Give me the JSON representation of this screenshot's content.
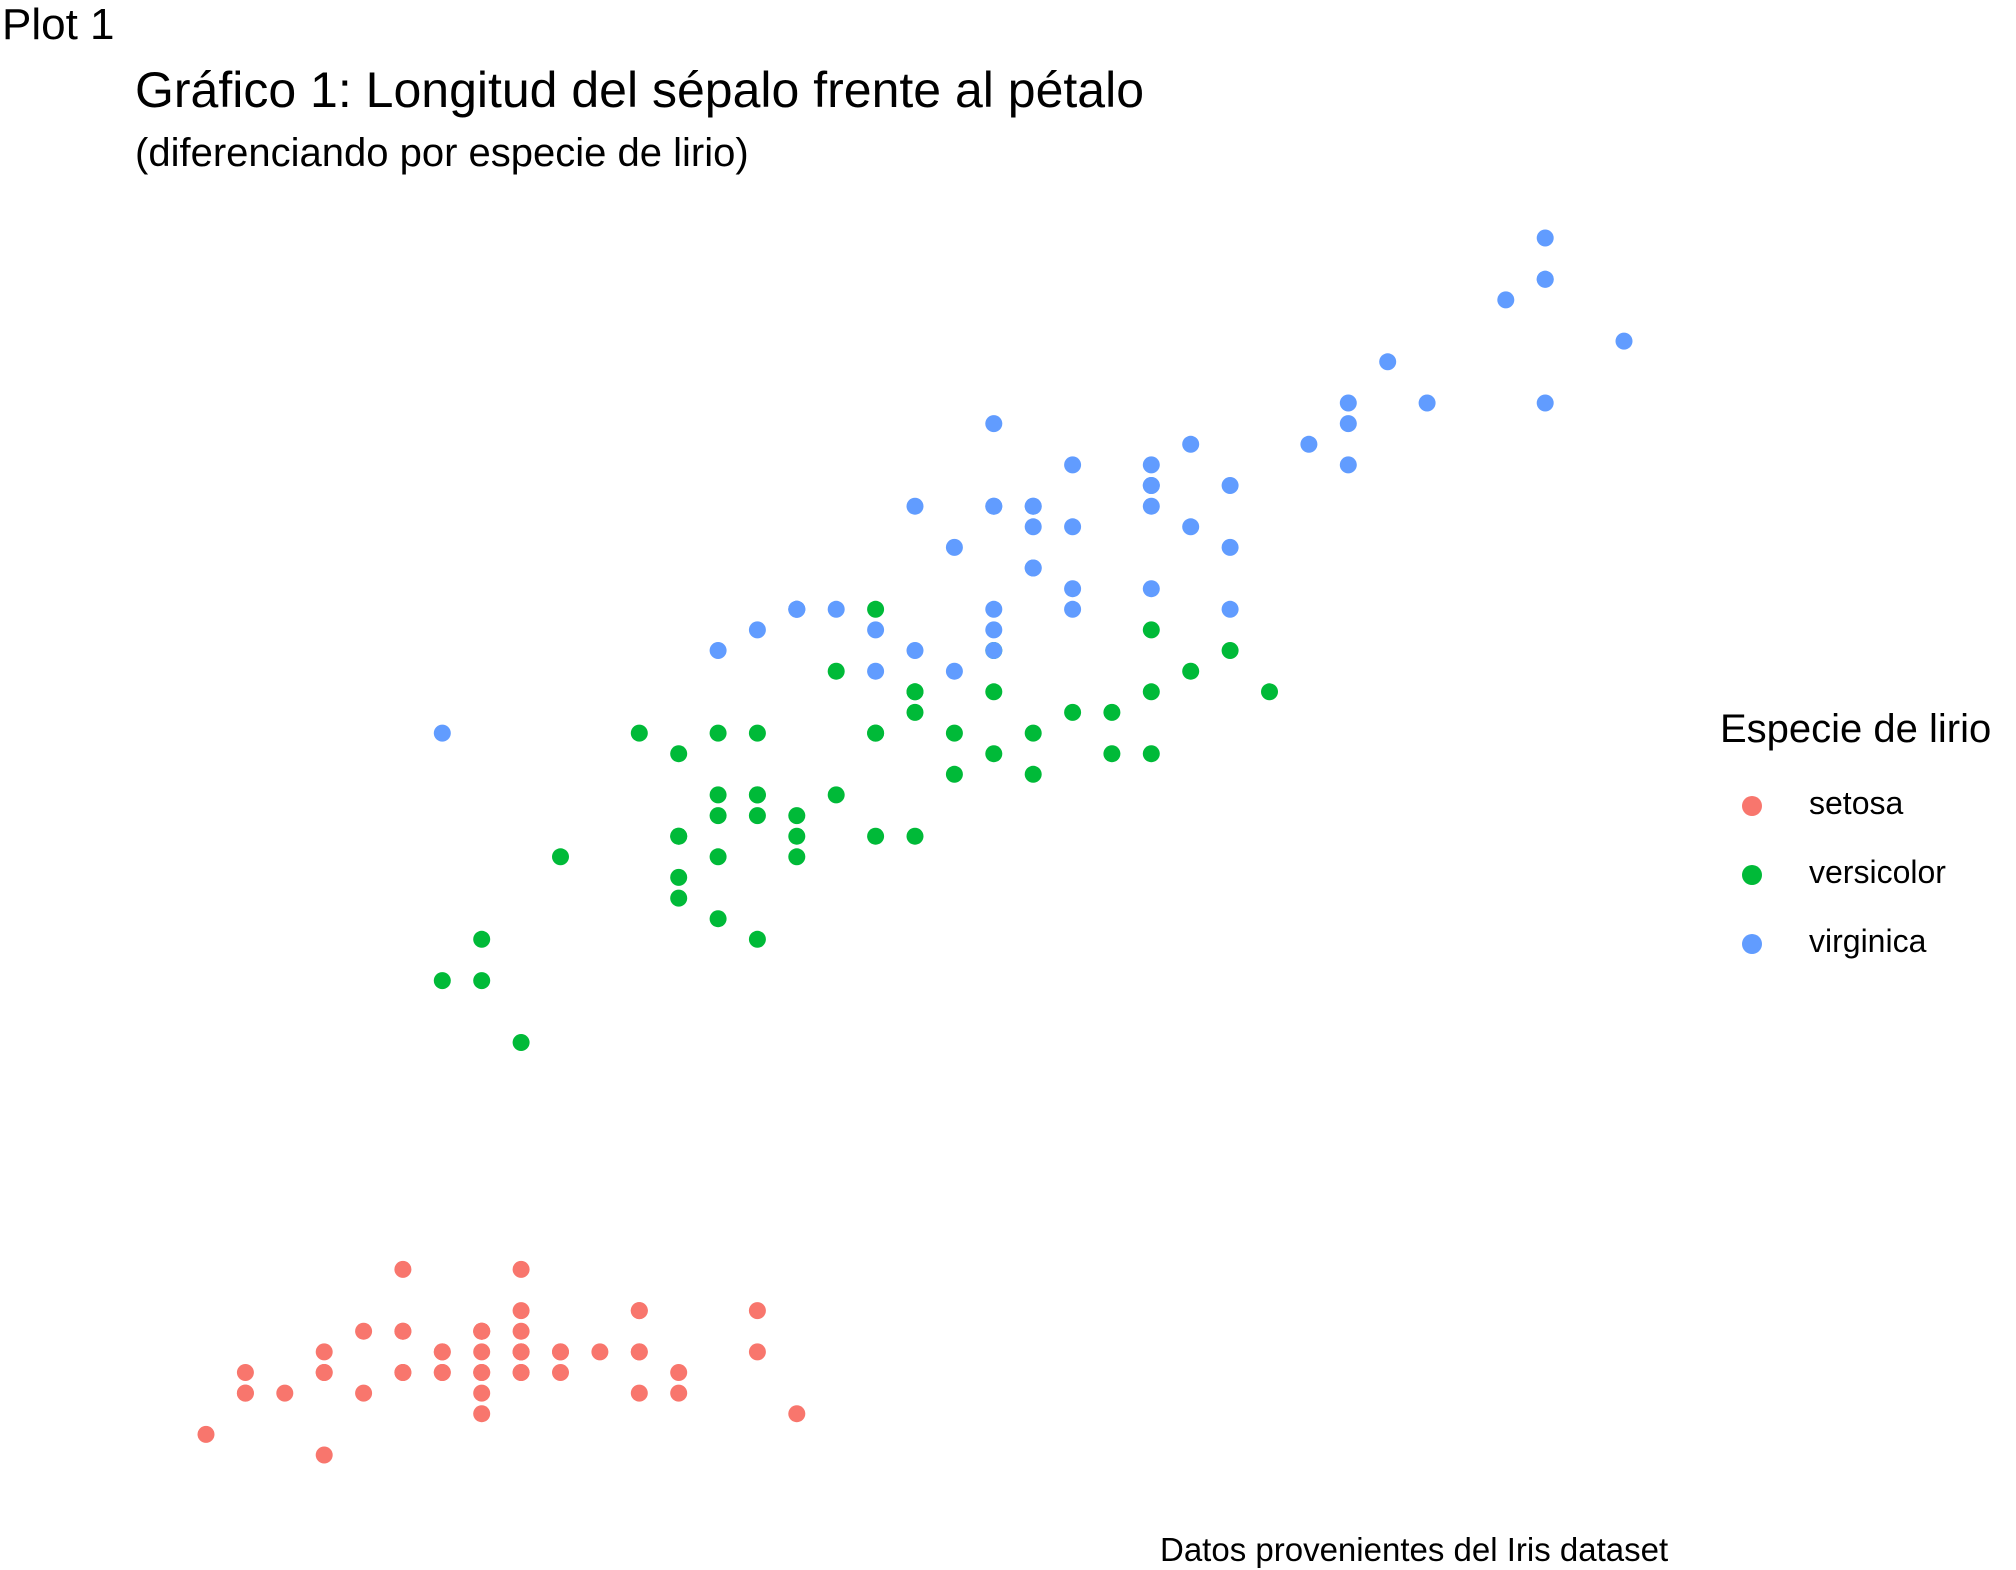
{
  "tag": "Plot 1",
  "chart_data": {
    "type": "scatter",
    "title": "Gráfico 1: Longitud del sépalo frente al pétalo",
    "subtitle": "(diferenciando por especie de lirio)",
    "caption": "Datos provenientes del Iris dataset",
    "xlabel": "",
    "ylabel": "",
    "xlim": [
      4.3,
      7.9
    ],
    "ylim": [
      1.0,
      6.9
    ],
    "grid": false,
    "legend": {
      "title": "Especie de lirio",
      "position": "right"
    },
    "series": [
      {
        "name": "setosa",
        "color": "#F8766D",
        "points": [
          [
            5.1,
            1.4
          ],
          [
            4.9,
            1.4
          ],
          [
            4.7,
            1.3
          ],
          [
            4.6,
            1.5
          ],
          [
            5.0,
            1.4
          ],
          [
            5.4,
            1.7
          ],
          [
            4.6,
            1.4
          ],
          [
            5.0,
            1.5
          ],
          [
            4.4,
            1.4
          ],
          [
            4.9,
            1.5
          ],
          [
            5.4,
            1.5
          ],
          [
            4.8,
            1.6
          ],
          [
            4.8,
            1.4
          ],
          [
            4.3,
            1.1
          ],
          [
            5.8,
            1.2
          ],
          [
            5.7,
            1.5
          ],
          [
            5.4,
            1.3
          ],
          [
            5.1,
            1.4
          ],
          [
            5.7,
            1.7
          ],
          [
            5.1,
            1.5
          ],
          [
            5.4,
            1.7
          ],
          [
            5.1,
            1.5
          ],
          [
            4.6,
            1.0
          ],
          [
            5.1,
            1.7
          ],
          [
            4.8,
            1.9
          ],
          [
            5.0,
            1.6
          ],
          [
            5.0,
            1.6
          ],
          [
            5.2,
            1.5
          ],
          [
            5.2,
            1.4
          ],
          [
            4.7,
            1.6
          ],
          [
            4.8,
            1.6
          ],
          [
            5.4,
            1.5
          ],
          [
            5.2,
            1.5
          ],
          [
            5.5,
            1.4
          ],
          [
            4.9,
            1.5
          ],
          [
            5.0,
            1.2
          ],
          [
            5.5,
            1.3
          ],
          [
            4.9,
            1.4
          ],
          [
            4.4,
            1.3
          ],
          [
            5.1,
            1.5
          ],
          [
            5.0,
            1.3
          ],
          [
            4.5,
            1.3
          ],
          [
            4.4,
            1.3
          ],
          [
            5.0,
            1.6
          ],
          [
            5.1,
            1.9
          ],
          [
            4.8,
            1.4
          ],
          [
            5.1,
            1.6
          ],
          [
            4.6,
            1.4
          ],
          [
            5.3,
            1.5
          ],
          [
            5.0,
            1.4
          ]
        ]
      },
      {
        "name": "versicolor",
        "color": "#00BA38",
        "points": [
          [
            7.0,
            4.7
          ],
          [
            6.4,
            4.5
          ],
          [
            6.9,
            4.9
          ],
          [
            5.5,
            4.0
          ],
          [
            6.5,
            4.6
          ],
          [
            5.7,
            4.5
          ],
          [
            6.3,
            4.7
          ],
          [
            4.9,
            3.3
          ],
          [
            6.6,
            4.6
          ],
          [
            5.2,
            3.9
          ],
          [
            5.0,
            3.5
          ],
          [
            5.9,
            4.2
          ],
          [
            6.0,
            4.0
          ],
          [
            6.1,
            4.7
          ],
          [
            5.6,
            3.6
          ],
          [
            6.7,
            4.4
          ],
          [
            5.6,
            4.5
          ],
          [
            5.8,
            4.1
          ],
          [
            6.2,
            4.5
          ],
          [
            5.6,
            3.9
          ],
          [
            5.9,
            4.8
          ],
          [
            6.1,
            4.0
          ],
          [
            6.3,
            4.9
          ],
          [
            6.1,
            4.7
          ],
          [
            6.4,
            4.3
          ],
          [
            6.6,
            4.4
          ],
          [
            6.8,
            4.8
          ],
          [
            6.7,
            5.0
          ],
          [
            6.0,
            4.5
          ],
          [
            5.7,
            3.5
          ],
          [
            5.5,
            3.8
          ],
          [
            5.5,
            3.7
          ],
          [
            5.8,
            3.9
          ],
          [
            6.0,
            5.1
          ],
          [
            5.4,
            4.5
          ],
          [
            6.0,
            4.5
          ],
          [
            6.7,
            4.7
          ],
          [
            6.3,
            4.4
          ],
          [
            5.6,
            4.1
          ],
          [
            5.5,
            4.0
          ],
          [
            5.5,
            4.4
          ],
          [
            6.1,
            4.6
          ],
          [
            5.8,
            4.0
          ],
          [
            5.0,
            3.3
          ],
          [
            5.6,
            4.2
          ],
          [
            5.7,
            4.2
          ],
          [
            5.7,
            4.2
          ],
          [
            6.2,
            4.3
          ],
          [
            5.1,
            3.0
          ],
          [
            5.7,
            4.1
          ]
        ]
      },
      {
        "name": "virginica",
        "color": "#619CFF",
        "points": [
          [
            6.3,
            6.0
          ],
          [
            5.8,
            5.1
          ],
          [
            7.1,
            5.9
          ],
          [
            6.3,
            5.6
          ],
          [
            6.5,
            5.8
          ],
          [
            7.6,
            6.6
          ],
          [
            4.9,
            4.5
          ],
          [
            7.3,
            6.3
          ],
          [
            6.7,
            5.8
          ],
          [
            7.2,
            6.1
          ],
          [
            6.5,
            5.1
          ],
          [
            6.4,
            5.3
          ],
          [
            6.8,
            5.5
          ],
          [
            5.7,
            5.0
          ],
          [
            5.8,
            5.1
          ],
          [
            6.4,
            5.3
          ],
          [
            6.5,
            5.5
          ],
          [
            7.7,
            6.7
          ],
          [
            7.7,
            6.9
          ],
          [
            6.0,
            5.0
          ],
          [
            6.9,
            5.7
          ],
          [
            5.6,
            4.9
          ],
          [
            7.7,
            6.7
          ],
          [
            6.3,
            4.9
          ],
          [
            6.7,
            5.7
          ],
          [
            7.2,
            6.0
          ],
          [
            6.2,
            4.8
          ],
          [
            6.1,
            4.9
          ],
          [
            6.4,
            5.6
          ],
          [
            7.2,
            5.8
          ],
          [
            7.4,
            6.1
          ],
          [
            7.9,
            6.4
          ],
          [
            6.4,
            5.6
          ],
          [
            6.3,
            5.1
          ],
          [
            6.1,
            5.6
          ],
          [
            7.7,
            6.1
          ],
          [
            6.3,
            5.6
          ],
          [
            6.4,
            5.5
          ],
          [
            6.0,
            4.8
          ],
          [
            6.9,
            5.4
          ],
          [
            6.7,
            5.6
          ],
          [
            6.9,
            5.1
          ],
          [
            5.8,
            5.1
          ],
          [
            6.8,
            5.9
          ],
          [
            6.7,
            5.7
          ],
          [
            6.7,
            5.2
          ],
          [
            6.3,
            5.0
          ],
          [
            6.5,
            5.2
          ],
          [
            6.2,
            5.4
          ],
          [
            5.9,
            5.1
          ]
        ]
      }
    ]
  }
}
